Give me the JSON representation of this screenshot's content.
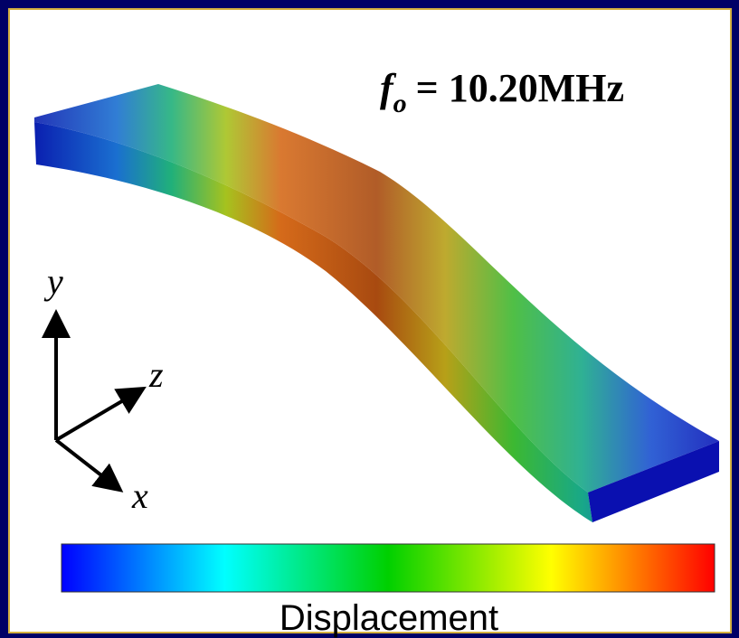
{
  "annotation": {
    "symbol": "f",
    "subscript": "o",
    "text": "= 10.20MHz"
  },
  "axes": {
    "y": "y",
    "z": "z",
    "x": "x"
  },
  "colorbar": {
    "label": "Displacement"
  }
}
